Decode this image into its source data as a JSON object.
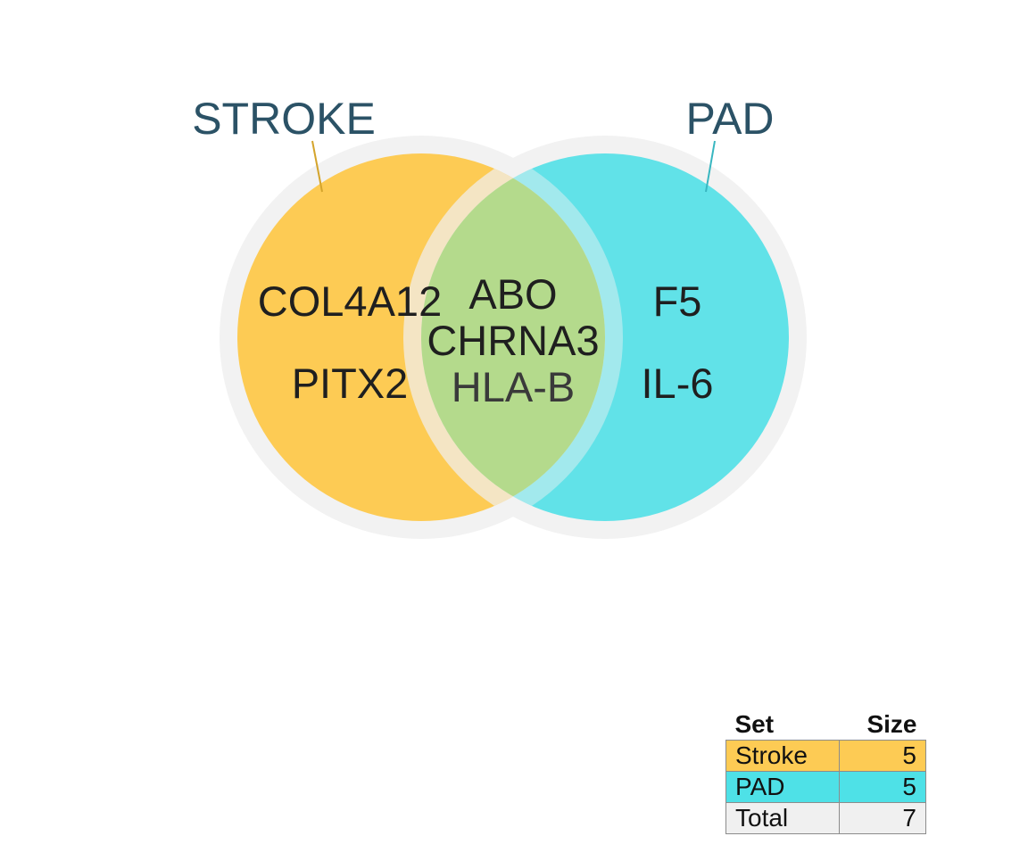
{
  "sets": [
    {
      "name": "STROKE",
      "label": "Stroke",
      "size": "5",
      "color": "#fdcb54"
    },
    {
      "name": "PAD",
      "label": "PAD",
      "size": "5",
      "color": "#61e2e8"
    }
  ],
  "regions": {
    "stroke_only": [
      "COL4A12",
      "PITX2"
    ],
    "intersection": [
      "ABO",
      "CHRNA3",
      "HLA-B"
    ],
    "pad_only": [
      "F5",
      "IL-6"
    ]
  },
  "colors": {
    "stroke": "#fdcb54",
    "pad": "#61e2e8",
    "intersection": "#b4da8c",
    "ring": "#f2f2f2",
    "title_text": "#2b5266",
    "stroke_pointer": "#d4a42c",
    "pad_pointer": "#38b6c0"
  },
  "table": {
    "header_set": "Set",
    "header_size": "Size",
    "rows": [
      {
        "label": "Stroke",
        "value": "5",
        "color": "#fdcb54"
      },
      {
        "label": "PAD",
        "value": "5",
        "color": "#4ee1e7"
      },
      {
        "label": "Total",
        "value": "7",
        "color": "#f0f0f0"
      }
    ]
  }
}
